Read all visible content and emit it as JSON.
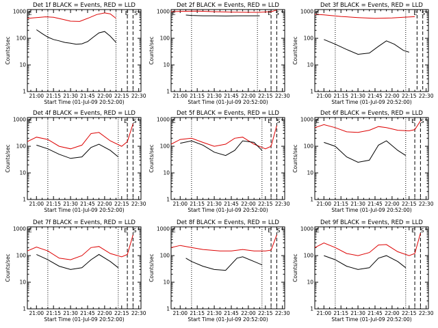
{
  "figure": {
    "xlabel": "Start Time (01-Jul-09 20:52:00)",
    "ylabel": "Counts/sec",
    "x_ticks": [
      "21:00",
      "21:15",
      "21:30",
      "21:45",
      "22:00",
      "22:15",
      "22:30"
    ],
    "y_ticks": [
      "1",
      "10",
      "100",
      "1000"
    ],
    "colors": {
      "events": "#000000",
      "lld": "#dd0000"
    },
    "x_range": [
      "20:52",
      "22:32"
    ],
    "y_range": [
      1,
      1200
    ],
    "y_scale": "log",
    "grid": false
  },
  "chart_data": [
    {
      "type": "line",
      "title": "Det 1f BLACK = Events, RED = LLD",
      "series": [
        {
          "x": [
            "20:52",
            "21:00",
            "21:08",
            "21:15",
            "21:23",
            "21:30",
            "21:38",
            "21:45",
            "21:53",
            "22:00",
            "22:05",
            "22:10"
          ],
          "values": [
            560,
            600,
            640,
            620,
            520,
            440,
            430,
            560,
            780,
            900,
            820,
            560
          ]
        },
        {
          "x": [
            "21:00",
            "21:05",
            "21:10",
            "21:15",
            "21:20",
            "21:25",
            "21:30",
            "21:35",
            "21:40",
            "21:45",
            "21:50",
            "21:55",
            "22:00",
            "22:05",
            "22:10"
          ],
          "values": [
            210,
            150,
            110,
            90,
            80,
            70,
            65,
            60,
            62,
            75,
            110,
            160,
            180,
            120,
            70
          ]
        }
      ],
      "dotted_lines": [
        "21:10",
        "22:10"
      ],
      "dashed_lines": [
        "22:20",
        "22:25"
      ],
      "markers": [
        {
          "label": "E",
          "x": "20:53"
        },
        {
          "label": "E",
          "x": "22:18"
        },
        {
          "label": "S",
          "x": "22:26"
        }
      ]
    },
    {
      "type": "line",
      "title": "Det 2f BLACK = Events, RED = LLD",
      "series": [
        {
          "x": [
            "20:52",
            "21:00",
            "21:15",
            "21:30",
            "21:45",
            "22:00",
            "22:10",
            "22:20",
            "22:25"
          ],
          "values": [
            1000,
            1030,
            1050,
            1000,
            960,
            950,
            950,
            1000,
            1150
          ]
        },
        {
          "x": [
            "21:05",
            "21:10",
            "21:20",
            "21:30",
            "21:40",
            "21:50",
            "22:00",
            "22:10"
          ],
          "values": [
            750,
            720,
            700,
            700,
            690,
            700,
            700,
            700
          ]
        }
      ],
      "dotted_lines": [
        "21:10",
        "22:08"
      ],
      "dashed_lines": [
        "22:20",
        "22:25"
      ],
      "markers": [
        {
          "label": "E",
          "x": "20:53"
        },
        {
          "label": "E",
          "x": "22:17"
        },
        {
          "label": "S",
          "x": "22:24"
        }
      ]
    },
    {
      "type": "line",
      "title": "Det 3f BLACK = Events, RED = LLD",
      "series": [
        {
          "x": [
            "20:52",
            "21:00",
            "21:15",
            "21:30",
            "21:45",
            "22:00",
            "22:10",
            "22:20"
          ],
          "values": [
            800,
            760,
            660,
            600,
            560,
            580,
            620,
            650
          ]
        },
        {
          "x": [
            "21:00",
            "21:10",
            "21:20",
            "21:30",
            "21:40",
            "21:48",
            "21:55",
            "22:02",
            "22:10",
            "22:15"
          ],
          "values": [
            90,
            60,
            38,
            25,
            28,
            50,
            80,
            60,
            35,
            30
          ]
        }
      ],
      "dotted_lines": [
        "21:10",
        "22:12"
      ],
      "dashed_lines": [
        "22:22",
        "22:27"
      ],
      "markers": [
        {
          "label": "E",
          "x": "20:53"
        },
        {
          "label": "E",
          "x": "22:19"
        },
        {
          "label": "S",
          "x": "22:26"
        }
      ]
    },
    {
      "type": "line",
      "title": "Det 4f BLACK = Events, RED = LLD",
      "series": [
        {
          "x": [
            "20:52",
            "21:00",
            "21:10",
            "21:20",
            "21:30",
            "21:40",
            "21:48",
            "21:55",
            "22:05",
            "22:15",
            "22:20",
            "22:25"
          ],
          "values": [
            150,
            220,
            180,
            100,
            80,
            110,
            300,
            330,
            160,
            100,
            150,
            700
          ]
        },
        {
          "x": [
            "21:00",
            "21:10",
            "21:20",
            "21:30",
            "21:40",
            "21:48",
            "21:55",
            "22:05",
            "22:12"
          ],
          "values": [
            110,
            80,
            50,
            35,
            40,
            90,
            120,
            70,
            40
          ]
        }
      ],
      "dotted_lines": [
        "21:10",
        "22:12"
      ],
      "dashed_lines": [
        "22:20",
        "22:25"
      ],
      "markers": [
        {
          "label": "E",
          "x": "20:53"
        },
        {
          "label": "E",
          "x": "22:17"
        },
        {
          "label": "S",
          "x": "22:25"
        }
      ]
    },
    {
      "type": "line",
      "title": "Det 5f BLACK = Events, RED = LLD",
      "series": [
        {
          "x": [
            "20:52",
            "21:00",
            "21:10",
            "21:20",
            "21:30",
            "21:40",
            "21:48",
            "21:55",
            "22:05",
            "22:15",
            "22:20",
            "22:25"
          ],
          "values": [
            120,
            180,
            200,
            140,
            100,
            120,
            200,
            220,
            120,
            80,
            100,
            600
          ]
        },
        {
          "x": [
            "21:00",
            "21:10",
            "21:20",
            "21:30",
            "21:40",
            "21:48",
            "21:55",
            "22:05",
            "22:12"
          ],
          "values": [
            130,
            160,
            110,
            60,
            45,
            70,
            160,
            140,
            70
          ]
        }
      ],
      "dotted_lines": [
        "21:10",
        "22:12"
      ],
      "dashed_lines": [
        "22:20",
        "22:25"
      ],
      "markers": [
        {
          "label": "E",
          "x": "20:53"
        },
        {
          "label": "E",
          "x": "22:17"
        },
        {
          "label": "S",
          "x": "22:25"
        }
      ]
    },
    {
      "type": "line",
      "title": "Det 6f BLACK = Events, RED = LLD",
      "series": [
        {
          "x": [
            "20:52",
            "21:00",
            "21:10",
            "21:20",
            "21:30",
            "21:40",
            "21:48",
            "21:55",
            "22:05",
            "22:15",
            "22:20",
            "22:25"
          ],
          "values": [
            500,
            650,
            500,
            350,
            330,
            400,
            550,
            500,
            400,
            380,
            420,
            900
          ]
        },
        {
          "x": [
            "21:00",
            "21:10",
            "21:20",
            "21:30",
            "21:40",
            "21:48",
            "21:55",
            "22:05",
            "22:12"
          ],
          "values": [
            140,
            100,
            40,
            25,
            30,
            110,
            160,
            70,
            45
          ]
        }
      ],
      "dotted_lines": [
        "21:10",
        "22:12"
      ],
      "dashed_lines": [
        "22:20",
        "22:25"
      ],
      "markers": [
        {
          "label": "E",
          "x": "20:53"
        },
        {
          "label": "E",
          "x": "22:17"
        },
        {
          "label": "S",
          "x": "22:25"
        }
      ]
    },
    {
      "type": "line",
      "title": "Det 7f BLACK = Events, RED = LLD",
      "series": [
        {
          "x": [
            "20:52",
            "21:00",
            "21:10",
            "21:20",
            "21:30",
            "21:40",
            "21:48",
            "21:55",
            "22:05",
            "22:15",
            "22:20",
            "22:25"
          ],
          "values": [
            150,
            210,
            150,
            80,
            70,
            100,
            200,
            220,
            120,
            90,
            110,
            600
          ]
        },
        {
          "x": [
            "21:00",
            "21:10",
            "21:20",
            "21:30",
            "21:40",
            "21:48",
            "21:55",
            "22:05",
            "22:12"
          ],
          "values": [
            110,
            70,
            40,
            30,
            35,
            70,
            110,
            60,
            35
          ]
        }
      ],
      "dotted_lines": [
        "21:10",
        "22:12"
      ],
      "dashed_lines": [
        "22:20",
        "22:25"
      ],
      "markers": [
        {
          "label": "E",
          "x": "20:53"
        },
        {
          "label": "E",
          "x": "22:17"
        },
        {
          "label": "S",
          "x": "22:25"
        }
      ]
    },
    {
      "type": "line",
      "title": "Det 8f BLACK = Events, RED = LLD",
      "series": [
        {
          "x": [
            "20:52",
            "21:00",
            "21:10",
            "21:20",
            "21:35",
            "21:45",
            "21:55",
            "22:05",
            "22:15",
            "22:20",
            "22:25"
          ],
          "values": [
            200,
            240,
            200,
            170,
            150,
            150,
            170,
            150,
            150,
            160,
            600
          ]
        },
        {
          "x": [
            "21:05",
            "21:10",
            "21:20",
            "21:30",
            "21:40",
            "21:50",
            "21:55",
            "22:05",
            "22:12"
          ],
          "values": [
            80,
            60,
            40,
            30,
            28,
            80,
            90,
            60,
            45
          ]
        }
      ],
      "dotted_lines": [
        "21:10",
        "22:12"
      ],
      "dashed_lines": [
        "22:20",
        "22:25"
      ],
      "markers": [
        {
          "label": "E",
          "x": "20:53"
        },
        {
          "label": "E",
          "x": "22:17"
        },
        {
          "label": "S",
          "x": "22:25"
        }
      ]
    },
    {
      "type": "line",
      "title": "Det 9f BLACK = Events, RED = LLD",
      "series": [
        {
          "x": [
            "20:52",
            "21:00",
            "21:10",
            "21:20",
            "21:30",
            "21:40",
            "21:48",
            "21:55",
            "22:05",
            "22:15",
            "22:20",
            "22:25"
          ],
          "values": [
            200,
            300,
            200,
            120,
            100,
            130,
            250,
            260,
            140,
            100,
            120,
            700
          ]
        },
        {
          "x": [
            "21:00",
            "21:10",
            "21:20",
            "21:30",
            "21:40",
            "21:48",
            "21:55",
            "22:05",
            "22:12"
          ],
          "values": [
            100,
            70,
            40,
            30,
            35,
            80,
            100,
            60,
            35
          ]
        }
      ],
      "dotted_lines": [
        "21:10",
        "22:12"
      ],
      "dashed_lines": [
        "22:20",
        "22:25"
      ],
      "markers": [
        {
          "label": "E",
          "x": "20:53"
        },
        {
          "label": "E",
          "x": "22:17"
        },
        {
          "label": "S",
          "x": "22:25"
        }
      ]
    }
  ]
}
